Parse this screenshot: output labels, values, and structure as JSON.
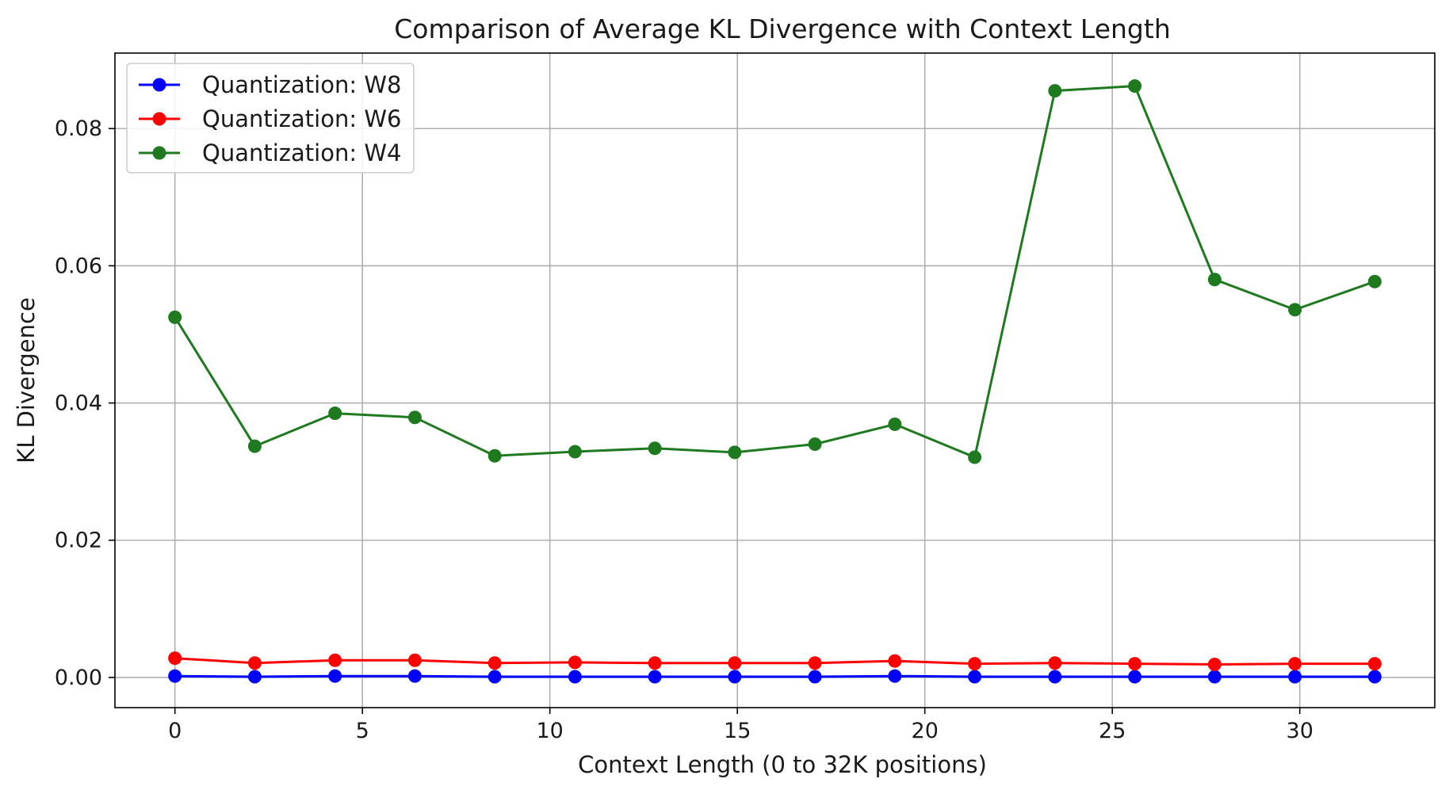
{
  "chart_data": {
    "type": "line",
    "title": "Comparison of Average KL Divergence with Context Length",
    "xlabel": "Context Length (0 to 32K positions)",
    "ylabel": "KL Divergence",
    "xlim": [
      -1.6,
      33.6
    ],
    "ylim": [
      -0.0044,
      0.091
    ],
    "xticks": [
      0,
      5,
      10,
      15,
      20,
      25,
      30
    ],
    "xtick_labels": [
      "0",
      "5",
      "10",
      "15",
      "20",
      "25",
      "30"
    ],
    "yticks": [
      0.0,
      0.02,
      0.04,
      0.06,
      0.08
    ],
    "ytick_labels": [
      "0.00",
      "0.02",
      "0.04",
      "0.06",
      "0.08"
    ],
    "grid": true,
    "legend_position": "top-left",
    "x": [
      0,
      2.13,
      4.27,
      6.4,
      8.53,
      10.67,
      12.8,
      14.93,
      17.07,
      19.2,
      21.33,
      23.47,
      25.6,
      27.73,
      29.87,
      32
    ],
    "series": [
      {
        "name": "Quantization: W8",
        "color": "#0000ff",
        "values": [
          0.0002,
          0.0001,
          0.0002,
          0.0002,
          0.0001,
          0.0001,
          0.0001,
          0.0001,
          0.0001,
          0.0002,
          0.0001,
          0.0001,
          0.0001,
          0.0001,
          0.0001,
          0.0001
        ]
      },
      {
        "name": "Quantization: W6",
        "color": "#ff0000",
        "values": [
          0.0028,
          0.0021,
          0.0025,
          0.0025,
          0.0021,
          0.0022,
          0.0021,
          0.0021,
          0.0021,
          0.0024,
          0.002,
          0.0021,
          0.002,
          0.0019,
          0.002,
          0.002
        ]
      },
      {
        "name": "Quantization: W4",
        "color": "#1f7a1f",
        "values": [
          0.0525,
          0.0337,
          0.0385,
          0.0379,
          0.0323,
          0.0329,
          0.0334,
          0.0328,
          0.034,
          0.0369,
          0.0321,
          0.0855,
          0.0862,
          0.058,
          0.0536,
          0.0577
        ]
      }
    ]
  }
}
